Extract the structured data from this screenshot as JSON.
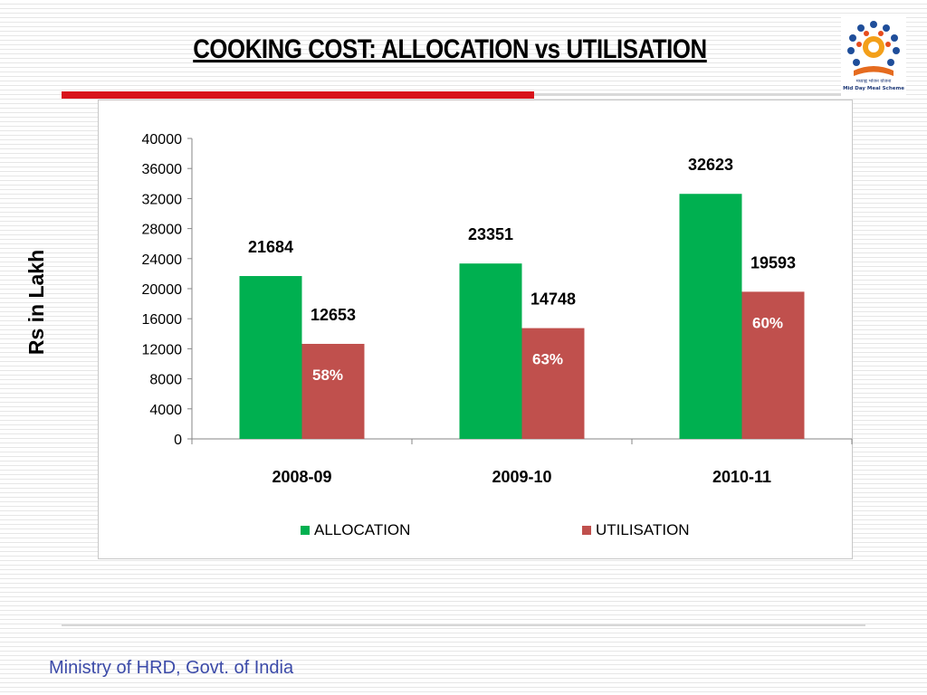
{
  "slide": {
    "title": "COOKING COST: ALLOCATION vs UTILISATION",
    "footer": "Ministry of HRD, Govt. of India",
    "logo": {
      "icon": "mid-day-meal-logo",
      "hindi_text": "मध्याह्न भोजन योजना",
      "english_text": "Mid Day Meal Scheme"
    },
    "colors": {
      "title_rule": "#d8141c",
      "footer_text": "#3b4aa8"
    }
  },
  "chart_data": {
    "type": "bar",
    "title": "",
    "ylabel": "Rs in Lakh",
    "xlabel": "",
    "categories": [
      "2008-09",
      "2009-10",
      "2010-11"
    ],
    "series": [
      {
        "name": "ALLOCATION",
        "color": "#00b050",
        "values": [
          21684,
          23351,
          32623
        ]
      },
      {
        "name": "UTILISATION",
        "color": "#c0504d",
        "values": [
          12653,
          14748,
          19593
        ]
      }
    ],
    "utilisation_percent_labels": [
      "58%",
      "63%",
      "60%"
    ],
    "percent_label_color": "#ffffff",
    "ylim": [
      0,
      40000
    ],
    "yticks": [
      0,
      4000,
      8000,
      12000,
      16000,
      20000,
      24000,
      28000,
      32000,
      36000,
      40000
    ],
    "grid": false,
    "legend_position": "bottom"
  }
}
